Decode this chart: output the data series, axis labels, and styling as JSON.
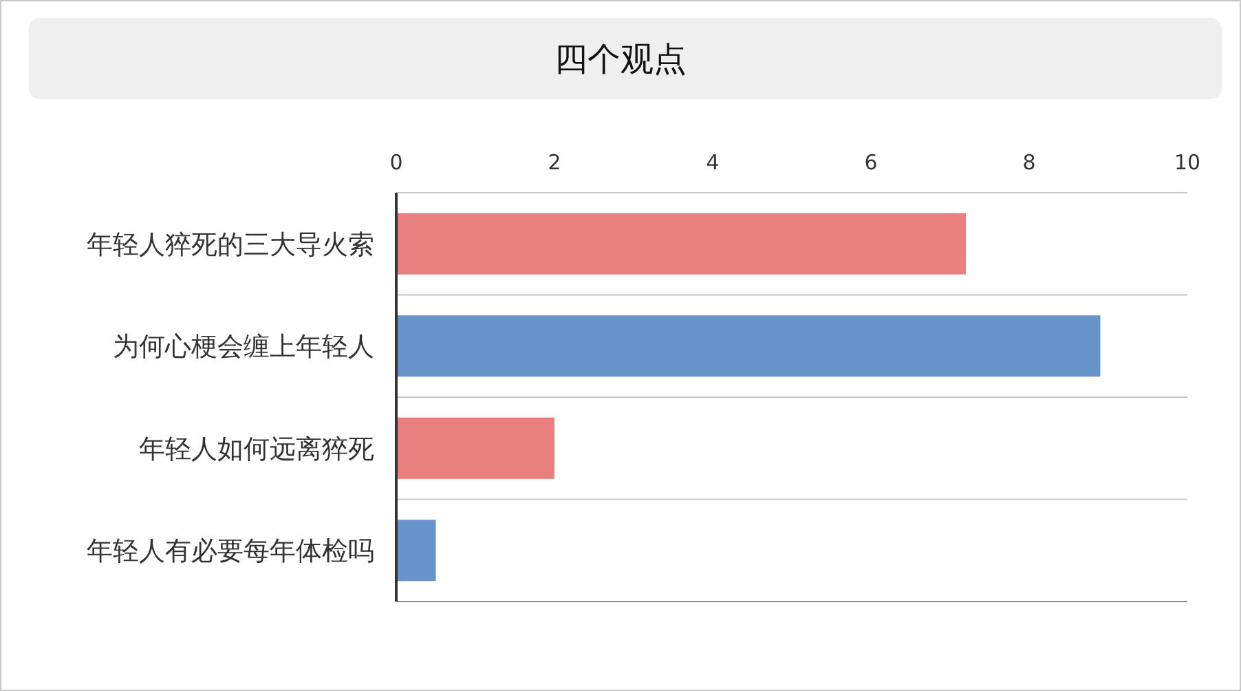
{
  "chart_data": {
    "type": "bar",
    "orientation": "horizontal",
    "title": "四个观点",
    "categories": [
      "年轻人猝死的三大导火索",
      "为何心梗会缠上年轻人",
      "年轻人如何远离猝死",
      "年轻人有必要每年体检吗"
    ],
    "values": [
      7.2,
      8.9,
      2,
      0.5
    ],
    "colors": [
      "#e97f7f",
      "#6895c9",
      "#e97f7f",
      "#6895c9"
    ],
    "xlim": [
      0,
      10
    ],
    "xticks": [
      0,
      2,
      4,
      6,
      8,
      10
    ],
    "grid": "y"
  }
}
